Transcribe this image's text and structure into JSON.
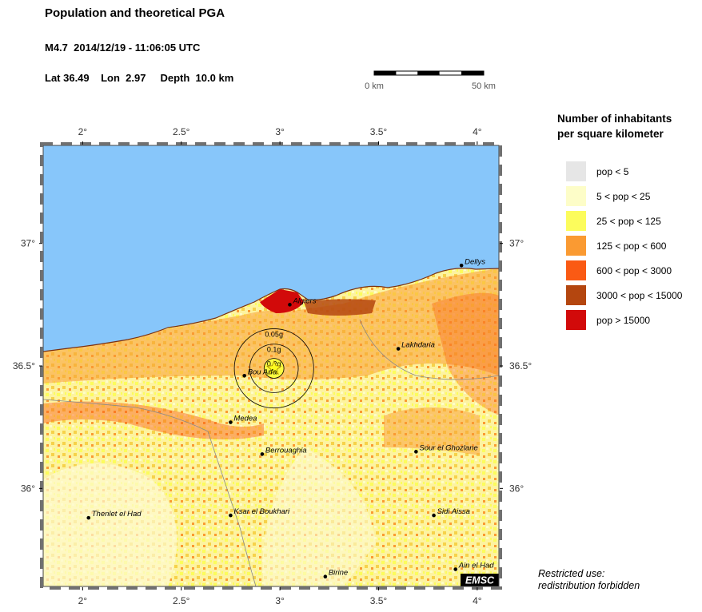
{
  "header": {
    "title": "Population and theoretical PGA",
    "event": "M4.7  2014/12/19 - 11:06:05 UTC",
    "location": "Lat 36.49    Lon  2.97     Depth  10.0 km"
  },
  "scale_bar": {
    "left_label": "0 km",
    "right_label": "50 km",
    "length_km": 50
  },
  "map": {
    "lon_range": [
      1.8,
      4.11
    ],
    "lat_range": [
      35.6,
      37.4
    ],
    "lon_ticks": [
      {
        "value": 2,
        "label": "2°"
      },
      {
        "value": 2.5,
        "label": "2.5°"
      },
      {
        "value": 3,
        "label": "3°"
      },
      {
        "value": 3.5,
        "label": "3.5°"
      },
      {
        "value": 4,
        "label": "4°"
      }
    ],
    "lat_ticks": [
      {
        "value": 37,
        "label": "37°"
      },
      {
        "value": 36.5,
        "label": "36.5°"
      },
      {
        "value": 36,
        "label": "36°"
      }
    ],
    "epicenter": {
      "lon": 2.97,
      "lat": 36.49
    },
    "pga_contours": [
      {
        "label": "0.05g",
        "radius_km": 18
      },
      {
        "label": "0.1g",
        "radius_km": 11
      },
      {
        "label": "0.2g",
        "radius_km": 4.5
      }
    ],
    "cities": [
      {
        "name": "Algiers",
        "lon": 3.05,
        "lat": 36.75
      },
      {
        "name": "Dellys",
        "lon": 3.92,
        "lat": 36.91
      },
      {
        "name": "Lakhdaria",
        "lon": 3.6,
        "lat": 36.57
      },
      {
        "name": "Bou Arfa",
        "lon": 2.82,
        "lat": 36.46
      },
      {
        "name": "Medea",
        "lon": 2.75,
        "lat": 36.27
      },
      {
        "name": "Berrouaghia",
        "lon": 2.91,
        "lat": 36.14
      },
      {
        "name": "Sour el Ghozlane",
        "lon": 3.69,
        "lat": 36.15
      },
      {
        "name": "Thenlet el Had",
        "lon": 2.03,
        "lat": 35.88
      },
      {
        "name": "Ksar el Boukhari",
        "lon": 2.75,
        "lat": 35.89
      },
      {
        "name": "Sidi Aissa",
        "lon": 3.78,
        "lat": 35.89
      },
      {
        "name": "Ain el Had",
        "lon": 3.89,
        "lat": 35.67
      },
      {
        "name": "Birine",
        "lon": 3.23,
        "lat": 35.64
      }
    ],
    "watermark": "EMSC"
  },
  "legend": {
    "title_line1": "Number of inhabitants",
    "title_line2": "per square kilometer",
    "items": [
      {
        "label": "pop < 5",
        "color": "#e6e6e6"
      },
      {
        "label": "5 < pop < 25",
        "color": "#fdfdc8"
      },
      {
        "label": "25 < pop < 125",
        "color": "#fcfc5c"
      },
      {
        "label": "125 < pop < 600",
        "color": "#fa9a32"
      },
      {
        "label": "600 < pop < 3000",
        "color": "#fa5a14"
      },
      {
        "label": "3000 < pop < 15000",
        "color": "#b4460f"
      },
      {
        "label": "pop > 15000",
        "color": "#d20a0a"
      }
    ]
  },
  "colors": {
    "sea": "#87c6fa",
    "contour": "#000000"
  },
  "footnote": {
    "line1": "Restricted use:",
    "line2": "redistribution forbidden"
  }
}
